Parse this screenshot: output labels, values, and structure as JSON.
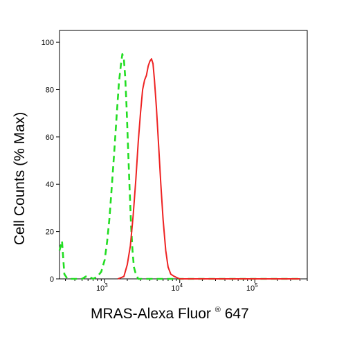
{
  "chart_data": {
    "type": "line",
    "xlabel": "MRAS-Alexa Fluor",
    "xlabel_superscript": "®",
    "xlabel_suffix": " 647",
    "ylabel": "Cell Counts (% Max)",
    "x_scale": "log",
    "xlim": [
      250,
      500000
    ],
    "ylim": [
      0,
      105
    ],
    "y_ticks": [
      "0",
      "20",
      "40",
      "60",
      "80",
      "100"
    ],
    "x_tick_exponents": [
      {
        "base": "10",
        "exp": "3"
      },
      {
        "base": "10",
        "exp": "4"
      },
      {
        "base": "10",
        "exp": "5"
      }
    ],
    "grid": false,
    "legend": "none",
    "series": [
      {
        "color": "#22dd22",
        "style": "dashed",
        "points": [
          [
            250,
            12
          ],
          [
            270,
            16
          ],
          [
            290,
            2
          ],
          [
            320,
            0
          ],
          [
            500,
            0
          ],
          [
            560,
            1
          ],
          [
            620,
            1
          ],
          [
            700,
            0
          ],
          [
            800,
            1
          ],
          [
            900,
            3
          ],
          [
            1000,
            8
          ],
          [
            1080,
            16
          ],
          [
            1160,
            26
          ],
          [
            1250,
            40
          ],
          [
            1350,
            55
          ],
          [
            1450,
            70
          ],
          [
            1550,
            83
          ],
          [
            1650,
            91
          ],
          [
            1720,
            95
          ],
          [
            1800,
            93
          ],
          [
            1880,
            85
          ],
          [
            1960,
            72
          ],
          [
            2050,
            55
          ],
          [
            2150,
            38
          ],
          [
            2250,
            22
          ],
          [
            2350,
            12
          ],
          [
            2450,
            5
          ],
          [
            2600,
            2
          ],
          [
            2800,
            0
          ],
          [
            20000,
            0
          ],
          [
            40000,
            0
          ],
          [
            100000,
            0
          ],
          [
            400000,
            0
          ]
        ]
      },
      {
        "color": "#ee2222",
        "style": "solid",
        "points": [
          [
            1500,
            0
          ],
          [
            1800,
            1
          ],
          [
            2000,
            6
          ],
          [
            2200,
            14
          ],
          [
            2400,
            27
          ],
          [
            2600,
            42
          ],
          [
            2800,
            58
          ],
          [
            3000,
            70
          ],
          [
            3200,
            80
          ],
          [
            3400,
            84
          ],
          [
            3600,
            86
          ],
          [
            3800,
            90
          ],
          [
            4000,
            92
          ],
          [
            4200,
            93
          ],
          [
            4400,
            91
          ],
          [
            4600,
            84
          ],
          [
            4900,
            72
          ],
          [
            5200,
            58
          ],
          [
            5600,
            40
          ],
          [
            6000,
            25
          ],
          [
            6500,
            12
          ],
          [
            7000,
            5
          ],
          [
            7600,
            2
          ],
          [
            8500,
            1
          ],
          [
            10000,
            0
          ],
          [
            400000,
            0
          ]
        ]
      }
    ]
  }
}
